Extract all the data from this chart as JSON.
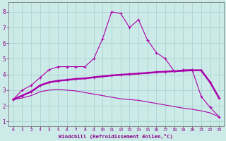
{
  "xlabel": "Windchill (Refroidissement éolien,°C)",
  "bg_color": "#cceae7",
  "grid_color": "#aad4d0",
  "line_color": "#aa00aa",
  "x_ticks": [
    0,
    1,
    2,
    3,
    4,
    5,
    6,
    7,
    8,
    9,
    10,
    11,
    12,
    13,
    14,
    15,
    16,
    17,
    18,
    19,
    20,
    21,
    22,
    23
  ],
  "y_ticks": [
    1,
    2,
    3,
    4,
    5,
    6,
    7,
    8
  ],
  "xlim": [
    -0.5,
    23.5
  ],
  "ylim": [
    0.7,
    8.6
  ],
  "series1_x": [
    0,
    1,
    2,
    3,
    4,
    5,
    6,
    7,
    8,
    9,
    10,
    11,
    12,
    13,
    14,
    15,
    16,
    17,
    18,
    19,
    20,
    21,
    22,
    23
  ],
  "series1_y": [
    2.4,
    3.0,
    3.3,
    3.8,
    4.3,
    4.5,
    4.5,
    4.5,
    4.5,
    5.0,
    6.3,
    8.0,
    7.9,
    7.0,
    7.5,
    6.2,
    5.4,
    5.0,
    4.2,
    4.3,
    4.3,
    2.6,
    1.9,
    1.3
  ],
  "series2_x": [
    0,
    1,
    2,
    3,
    4,
    5,
    6,
    7,
    8,
    9,
    10,
    11,
    12,
    13,
    14,
    15,
    16,
    17,
    18,
    19,
    20,
    21,
    22,
    23
  ],
  "series2_y": [
    2.4,
    2.65,
    2.9,
    3.3,
    3.5,
    3.6,
    3.65,
    3.72,
    3.75,
    3.82,
    3.88,
    3.94,
    3.98,
    4.02,
    4.06,
    4.1,
    4.15,
    4.18,
    4.21,
    4.24,
    4.27,
    4.27,
    3.5,
    2.5
  ],
  "series3_x": [
    0,
    1,
    2,
    3,
    4,
    5,
    6,
    7,
    8,
    9,
    10,
    11,
    12,
    13,
    14,
    15,
    16,
    17,
    18,
    19,
    20,
    21,
    22,
    23
  ],
  "series3_y": [
    2.4,
    2.5,
    2.65,
    2.9,
    3.0,
    3.05,
    3.0,
    2.95,
    2.85,
    2.75,
    2.65,
    2.55,
    2.45,
    2.4,
    2.35,
    2.25,
    2.15,
    2.05,
    1.95,
    1.85,
    1.78,
    1.68,
    1.55,
    1.3
  ]
}
